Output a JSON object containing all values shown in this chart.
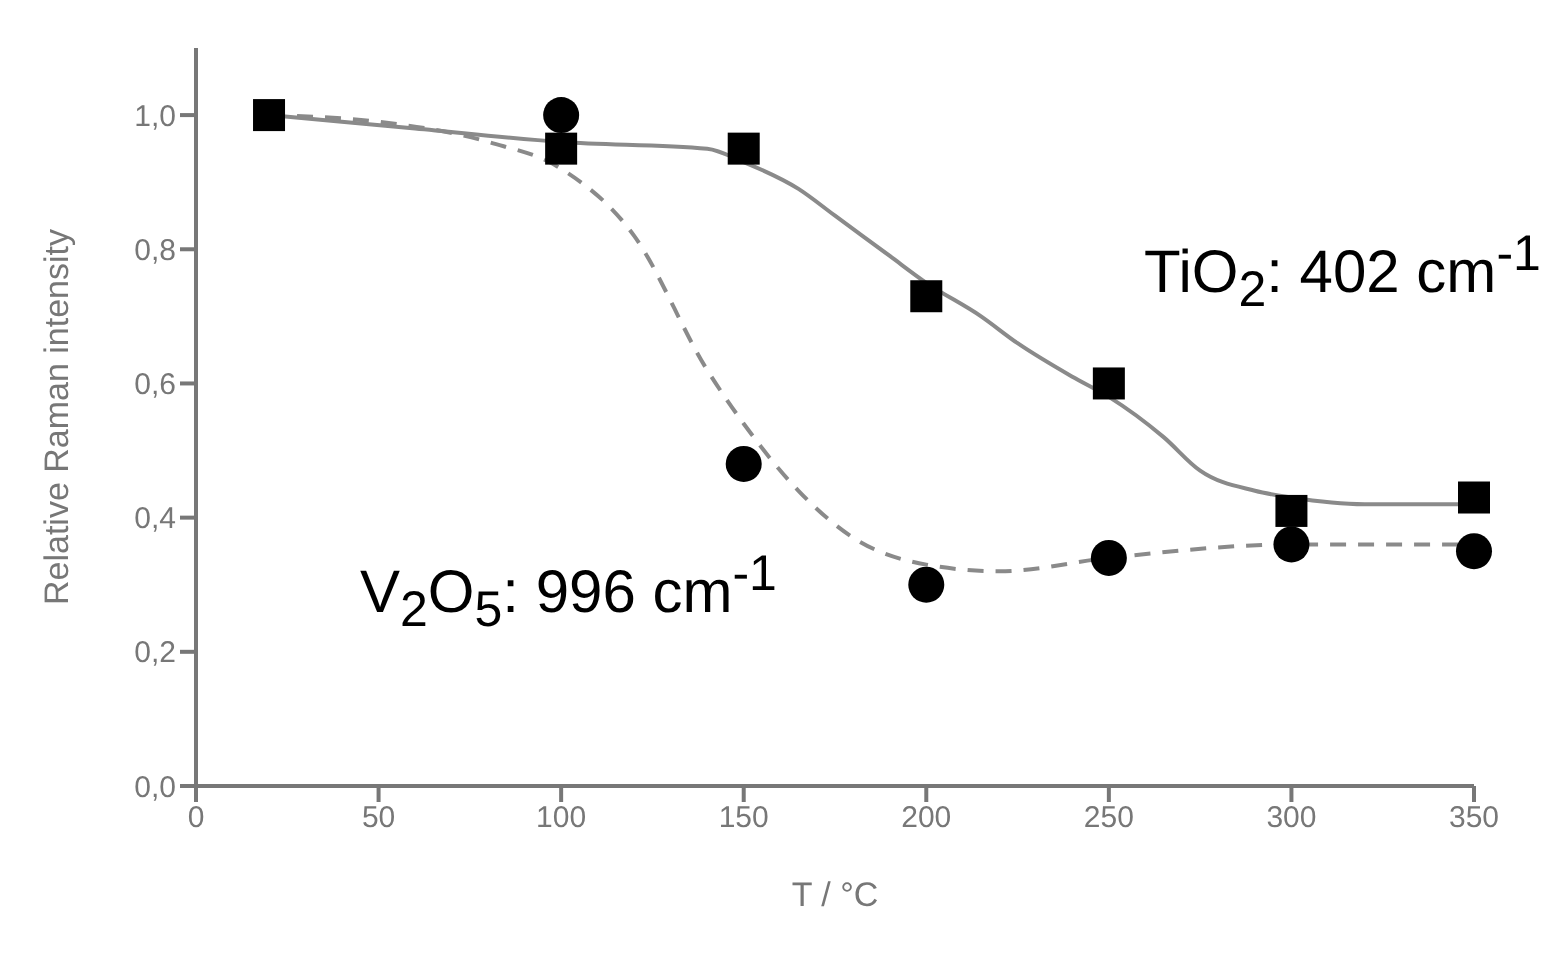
{
  "chart_data": {
    "type": "scatter",
    "xlabel": "T / °C",
    "ylabel": "Relative Raman intensity",
    "xlim": [
      0,
      350
    ],
    "ylim": [
      0,
      1.1
    ],
    "xticks": [
      0,
      50,
      100,
      150,
      200,
      250,
      300,
      350
    ],
    "yticks": [
      {
        "value": 0,
        "label": "0,0"
      },
      {
        "value": 0.2,
        "label": "0,2"
      },
      {
        "value": 0.4,
        "label": "0,4"
      },
      {
        "value": 0.6,
        "label": "0,6"
      },
      {
        "value": 0.8,
        "label": "0,8"
      },
      {
        "value": 1.0,
        "label": "1,0"
      }
    ],
    "grid": false,
    "legend": false,
    "series": [
      {
        "type": "line",
        "marker": "none",
        "line_style": "solid",
        "color": "#8a8a8a",
        "x": [
          20,
          60,
          100,
          140,
          150,
          165,
          175,
          190,
          200,
          215,
          225,
          240,
          250,
          265,
          275,
          290,
          300,
          320,
          350
        ],
        "values": [
          1.0,
          0.98,
          0.96,
          0.95,
          0.93,
          0.89,
          0.85,
          0.79,
          0.75,
          0.7,
          0.66,
          0.61,
          0.58,
          0.52,
          0.47,
          0.44,
          0.43,
          0.42,
          0.42
        ]
      },
      {
        "type": "line",
        "marker": "none",
        "line_style": "dashed",
        "color": "#8a8a8a",
        "x": [
          20,
          50,
          80,
          100,
          120,
          140,
          150,
          165,
          180,
          200,
          220,
          250,
          300,
          350
        ],
        "values": [
          1.0,
          0.99,
          0.96,
          0.92,
          0.82,
          0.62,
          0.54,
          0.44,
          0.37,
          0.33,
          0.32,
          0.34,
          0.36,
          0.36
        ]
      },
      {
        "marker": "square",
        "color": "#000000",
        "x": [
          20,
          100,
          150,
          200,
          250,
          300,
          350
        ],
        "values": [
          1.0,
          0.95,
          0.95,
          0.73,
          0.6,
          0.41,
          0.43
        ]
      },
      {
        "marker": "circle",
        "color": "#000000",
        "x": [
          100,
          150,
          200,
          250,
          300,
          350
        ],
        "values": [
          1.0,
          0.48,
          0.3,
          0.34,
          0.36,
          0.35
        ]
      }
    ],
    "annotations": [
      "TiO$_{2}$: 402 cm$^{-1}$",
      "V$_{2}$O$_{5}$: 996 cm$^{-1}$"
    ]
  }
}
